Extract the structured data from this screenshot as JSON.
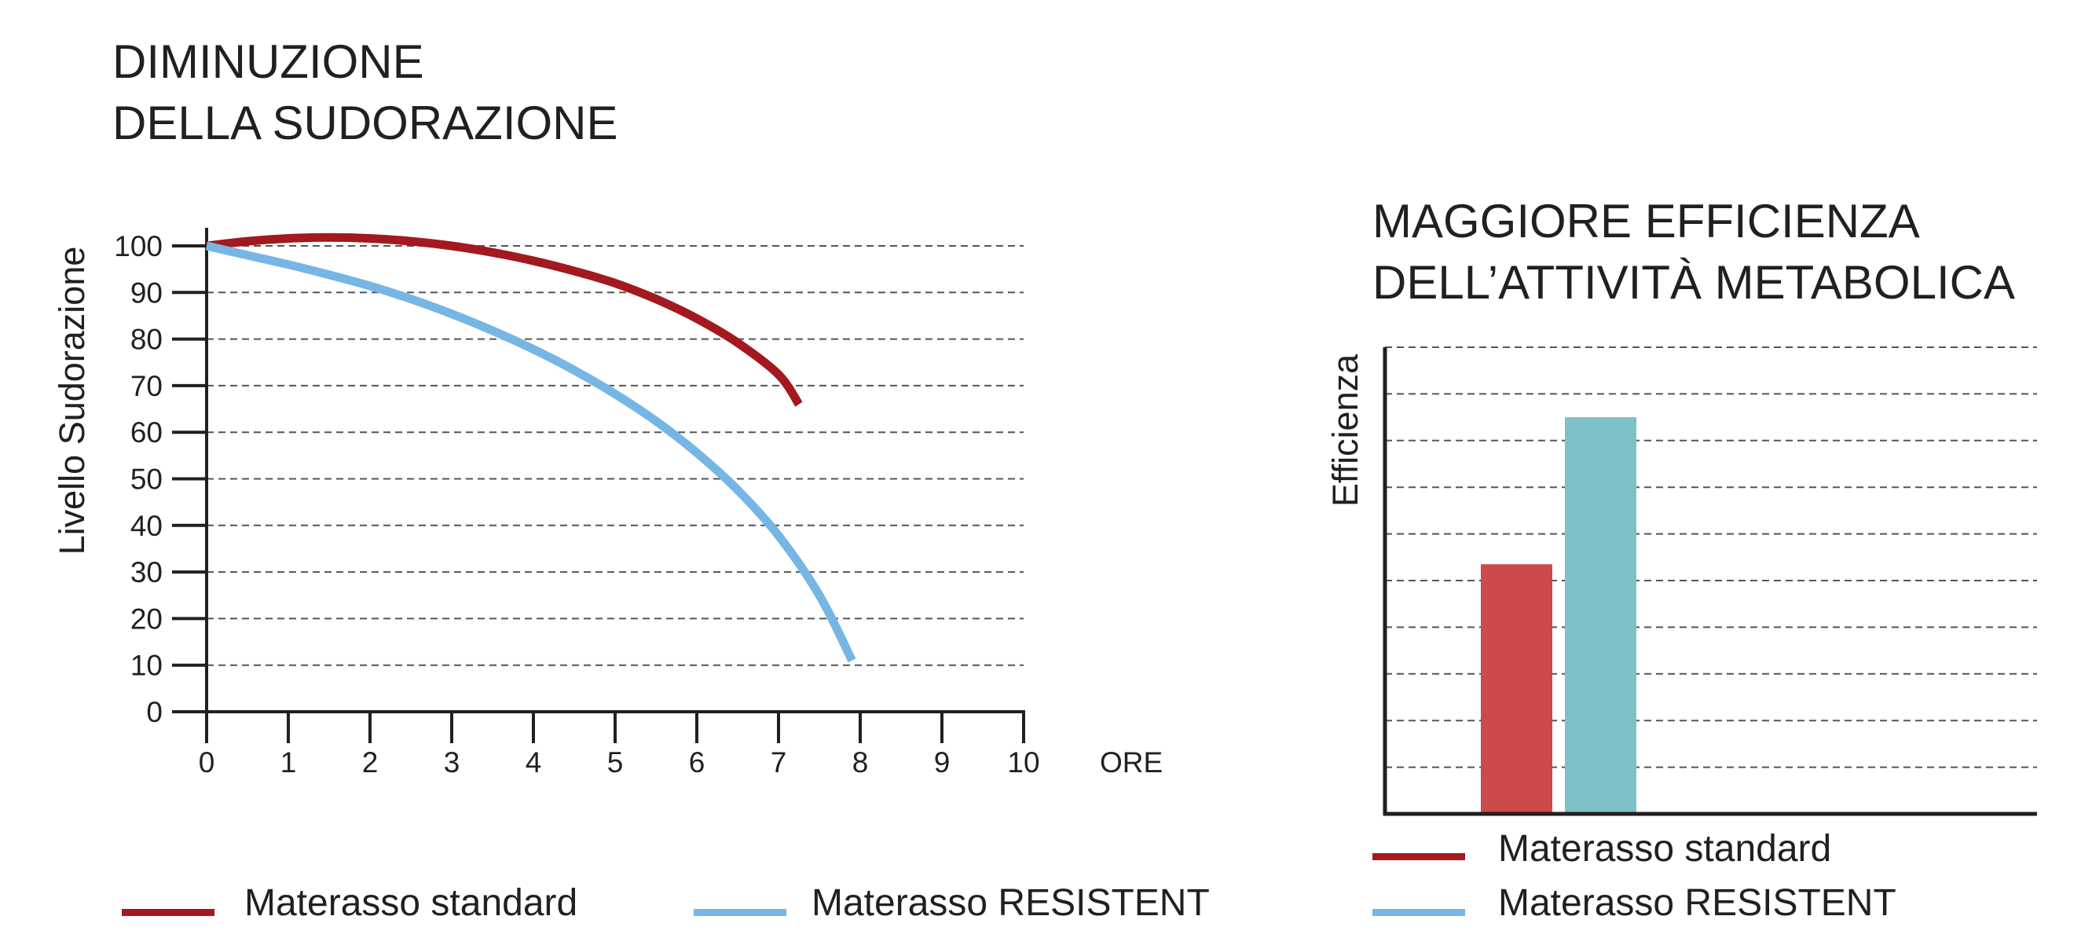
{
  "colors": {
    "standard": "#a2191f",
    "resistent": "#76b6e5",
    "bar_standard": "#cc4a4a",
    "bar_resistent": "#7fbfc8",
    "axis": "#231f20",
    "grid": "#555555"
  },
  "chart_data": [
    {
      "type": "line",
      "title": [
        "DIMINUZIONE",
        "DELLA SUDORAZIONE"
      ],
      "xlabel": "ORE",
      "ylabel": "Livello Sudorazione",
      "xlim": [
        0,
        10
      ],
      "ylim": [
        0,
        100
      ],
      "xticks": [
        0,
        1,
        2,
        3,
        4,
        5,
        6,
        7,
        8,
        9,
        10
      ],
      "yticks": [
        0,
        10,
        20,
        30,
        40,
        50,
        60,
        70,
        80,
        90,
        100
      ],
      "grid": "horizontal-dashed",
      "legend_position": "bottom",
      "series": [
        {
          "name": "Materasso standard",
          "x": [
            0,
            0.5,
            1,
            1.5,
            2,
            2.5,
            3,
            3.5,
            4,
            4.5,
            5,
            5.5,
            6,
            6.5,
            7,
            7.25
          ],
          "y": [
            100,
            101,
            101.6,
            101.8,
            101.6,
            101,
            100,
            98.6,
            96.8,
            94.6,
            92,
            88.6,
            84.4,
            79.2,
            72.4,
            66
          ]
        },
        {
          "name": "Materasso RESISTENT",
          "x": [
            0,
            0.5,
            1,
            1.5,
            2,
            2.5,
            3,
            3.5,
            4,
            4.5,
            5,
            5.5,
            6,
            6.5,
            7,
            7.5,
            7.9
          ],
          "y": [
            100,
            98,
            96,
            93.8,
            91.4,
            88.6,
            85.4,
            81.8,
            77.8,
            73.3,
            68.2,
            62.4,
            55.6,
            47.6,
            37.8,
            25,
            11
          ]
        }
      ]
    },
    {
      "type": "bar",
      "title": [
        "MAGGIORE EFFICIENZA",
        "DELL’ATTIVITÀ METABOLICA"
      ],
      "ylabel": "Efficienza",
      "ylim": [
        0,
        10
      ],
      "gridlines": 10,
      "grid": "horizontal-dashed",
      "legend_position": "bottom",
      "categories": [
        "Materasso standard",
        "Materasso RESISTENT"
      ],
      "values": [
        5.35,
        8.5
      ]
    }
  ],
  "legend_left": [
    {
      "label": "Materasso standard",
      "color": "#a2191f"
    },
    {
      "label": "Materasso RESISTENT",
      "color": "#76b6e5"
    }
  ],
  "legend_right": [
    {
      "label": "Materasso standard",
      "color": "#a2191f"
    },
    {
      "label": "Materasso RESISTENT",
      "color": "#76b6e5"
    }
  ]
}
